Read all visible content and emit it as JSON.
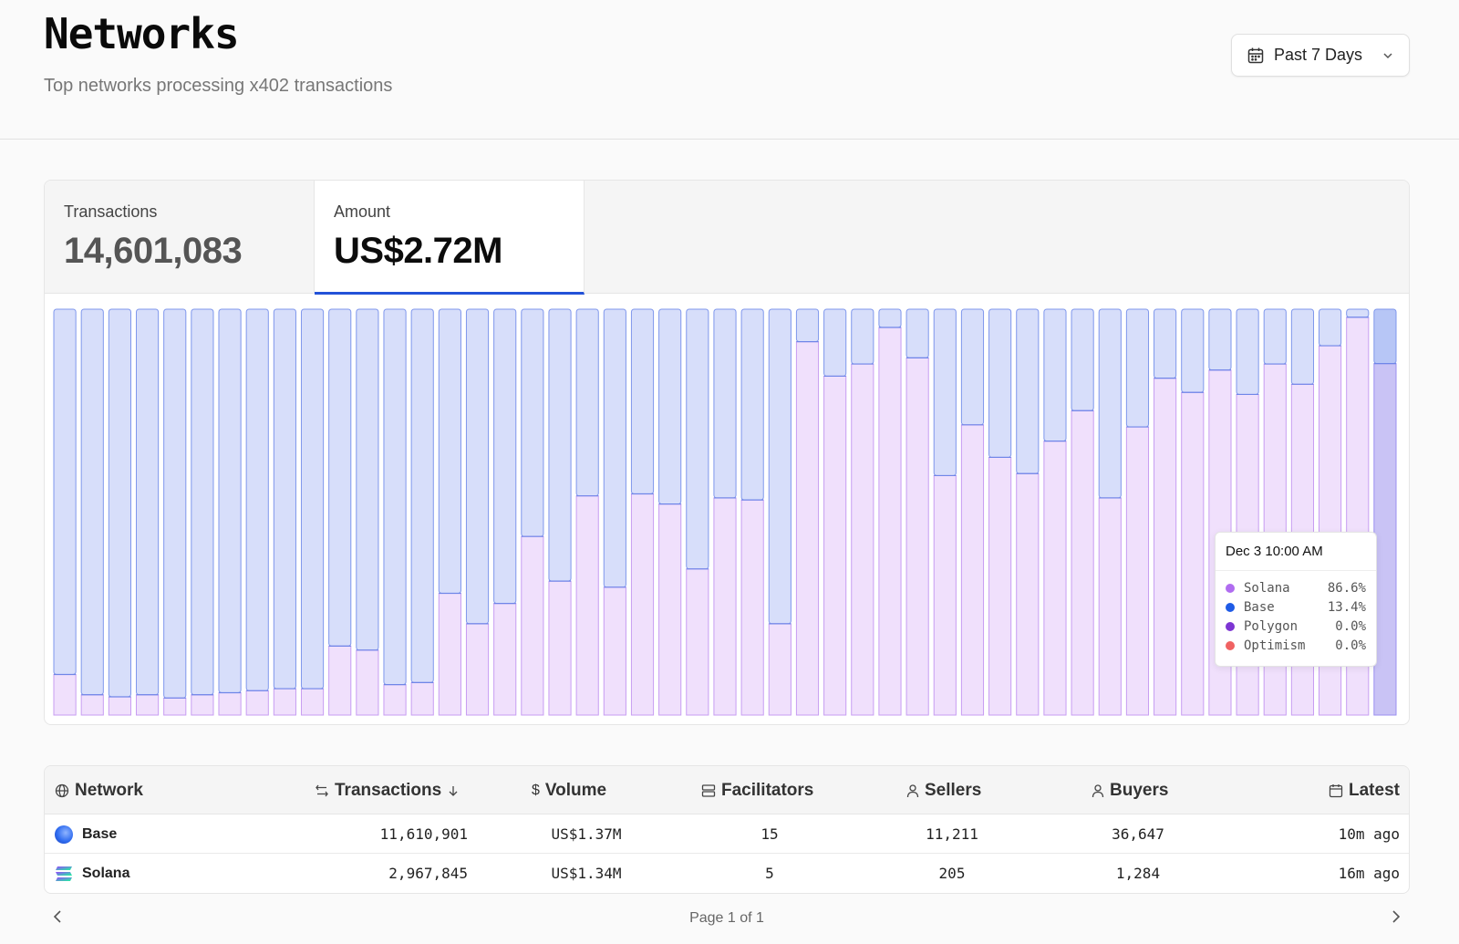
{
  "header": {
    "title": "Networks",
    "subtitle": "Top networks processing x402 transactions",
    "range_label": "Past 7 Days"
  },
  "stats": {
    "transactions_label": "Transactions",
    "transactions_value": "14,601,083",
    "amount_label": "Amount",
    "amount_value": "US$2.72M"
  },
  "tooltip": {
    "title": "Dec 3 10:00 AM",
    "rows": [
      {
        "name": "Solana",
        "value": "86.6%",
        "color": "#b06cf0"
      },
      {
        "name": "Base",
        "value": "13.4%",
        "color": "#1f5be6"
      },
      {
        "name": "Polygon",
        "value": "0.0%",
        "color": "#7d35d3"
      },
      {
        "name": "Optimism",
        "value": "0.0%",
        "color": "#f06262"
      }
    ]
  },
  "chart_data": {
    "type": "bar",
    "stacked": true,
    "normalized": true,
    "ylim": [
      0,
      100
    ],
    "series": [
      {
        "name": "Solana",
        "color": "#b06cf0",
        "values": [
          10,
          5,
          4.5,
          5,
          4.2,
          5,
          5.5,
          6,
          6.5,
          6.5,
          17,
          16,
          7.5,
          8,
          30,
          22.5,
          27.5,
          44,
          33,
          54,
          31.5,
          54.5,
          52,
          36,
          53.5,
          53,
          22.5,
          92,
          83.5,
          86.5,
          95.5,
          88,
          59,
          71.5,
          63.5,
          59.5,
          67.5,
          75,
          53.5,
          71,
          83,
          79.5,
          85,
          79,
          86.5,
          81.5,
          91,
          98,
          86.6
        ]
      },
      {
        "name": "Base",
        "color": "#1f5be6",
        "values": [
          90,
          95,
          95.5,
          95,
          95.8,
          95,
          94.5,
          94,
          93.5,
          93.5,
          83,
          84,
          92.5,
          92,
          70,
          77.5,
          72.5,
          56,
          67,
          46,
          68.5,
          45.5,
          48,
          64,
          46.5,
          47,
          77.5,
          8,
          16.5,
          13.5,
          4.5,
          12,
          41,
          28.5,
          36.5,
          40.5,
          32.5,
          25,
          46.5,
          29,
          17,
          20.5,
          15,
          21,
          13.5,
          18.5,
          9,
          2,
          13.4
        ]
      }
    ],
    "highlighted_index": 48
  },
  "table": {
    "columns": {
      "network": "Network",
      "transactions": "Transactions",
      "volume": "Volume",
      "facilitators": "Facilitators",
      "sellers": "Sellers",
      "buyers": "Buyers",
      "latest": "Latest"
    },
    "rows": [
      {
        "network": "Base",
        "transactions": "11,610,901",
        "volume": "US$1.37M",
        "facilitators": "15",
        "sellers": "11,211",
        "buyers": "36,647",
        "latest": "10m ago"
      },
      {
        "network": "Solana",
        "transactions": "2,967,845",
        "volume": "US$1.34M",
        "facilitators": "5",
        "sellers": "205",
        "buyers": "1,284",
        "latest": "16m ago"
      }
    ]
  },
  "pager": {
    "text": "Page 1 of 1"
  }
}
